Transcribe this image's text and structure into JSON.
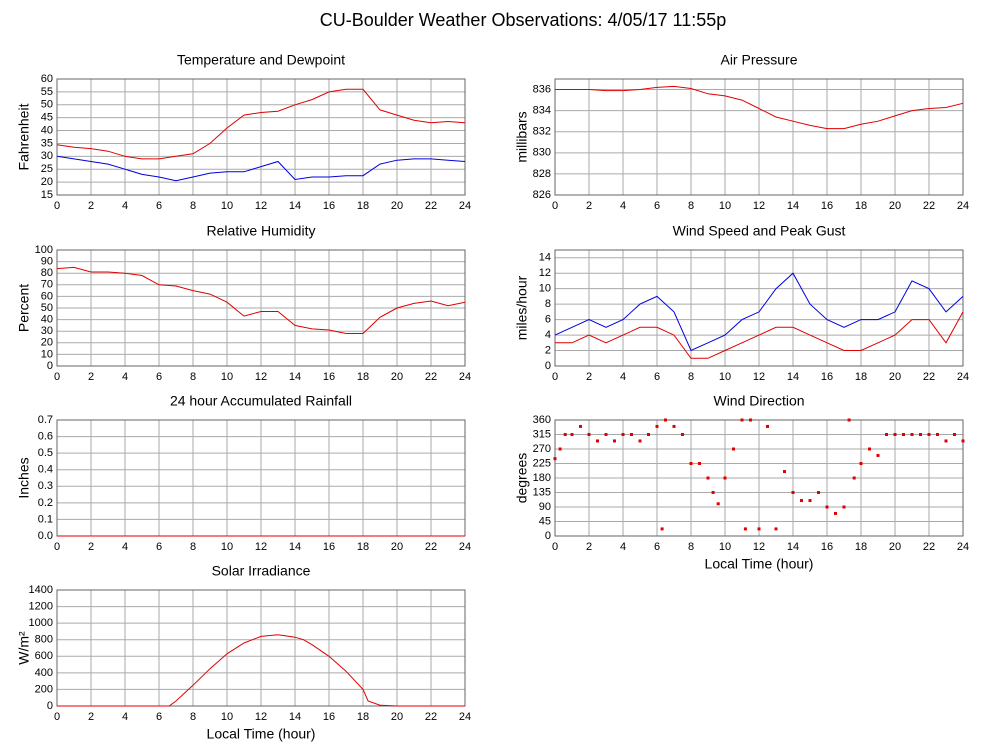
{
  "title": "CU-Boulder Weather Observations: 4/05/17 11:55p",
  "chart_data": [
    {
      "type": "line",
      "title": "Temperature and Dewpoint",
      "ylabel": "Fahrenheit",
      "x": [
        0,
        1,
        2,
        3,
        4,
        5,
        6,
        7,
        8,
        9,
        10,
        11,
        12,
        13,
        14,
        15,
        16,
        17,
        18,
        19,
        20,
        21,
        22,
        23,
        24
      ],
      "series": [
        {
          "color": "#e00000",
          "values": [
            34.5,
            33.5,
            33,
            32,
            30,
            29,
            29,
            30,
            31,
            35,
            41,
            46,
            47,
            47.5,
            50,
            52,
            55,
            56,
            56,
            48,
            46,
            44,
            43,
            43.5,
            43
          ]
        },
        {
          "color": "#0000e0",
          "values": [
            30,
            29,
            28,
            27,
            25,
            23,
            22,
            20.5,
            22,
            23.5,
            24,
            24,
            26,
            28,
            21,
            22,
            22,
            22.5,
            22.5,
            27,
            28.5,
            29,
            29,
            28.5,
            28
          ]
        }
      ],
      "xlim": [
        0,
        24
      ],
      "xticks": [
        0,
        2,
        4,
        6,
        8,
        10,
        12,
        14,
        16,
        18,
        20,
        22,
        24
      ],
      "ylim": [
        15,
        60
      ],
      "yticks": [
        15,
        20,
        25,
        30,
        35,
        40,
        45,
        50,
        55,
        60
      ],
      "grid": true
    },
    {
      "type": "line",
      "title": "Air Pressure",
      "ylabel": "millibars",
      "x": [
        0,
        1,
        2,
        3,
        4,
        5,
        6,
        7,
        8,
        9,
        10,
        11,
        12,
        13,
        14,
        15,
        16,
        17,
        18,
        19,
        20,
        21,
        22,
        23,
        24
      ],
      "series": [
        {
          "color": "#e00000",
          "values": [
            836,
            836,
            836,
            835.9,
            835.9,
            836,
            836.2,
            836.3,
            836.1,
            835.6,
            835.4,
            835,
            834.2,
            833.4,
            833,
            832.6,
            832.3,
            832.3,
            832.7,
            833,
            833.5,
            834,
            834.2,
            834.3,
            834.7
          ]
        }
      ],
      "xlim": [
        0,
        24
      ],
      "xticks": [
        0,
        2,
        4,
        6,
        8,
        10,
        12,
        14,
        16,
        18,
        20,
        22,
        24
      ],
      "ylim": [
        826,
        837
      ],
      "yticks": [
        826,
        828,
        830,
        832,
        834,
        836
      ],
      "grid": true
    },
    {
      "type": "line",
      "title": "Relative Humidity",
      "ylabel": "Percent",
      "x": [
        0,
        1,
        2,
        3,
        4,
        5,
        6,
        7,
        8,
        9,
        10,
        11,
        12,
        13,
        14,
        15,
        16,
        17,
        18,
        19,
        20,
        21,
        22,
        23,
        24
      ],
      "series": [
        {
          "color": "#e00000",
          "values": [
            84,
            85,
            81,
            81,
            80,
            78,
            70,
            69,
            65,
            62,
            55,
            43,
            47,
            47,
            35,
            32,
            31,
            28,
            28,
            42,
            50,
            54,
            56,
            52,
            55
          ]
        }
      ],
      "xlim": [
        0,
        24
      ],
      "xticks": [
        0,
        2,
        4,
        6,
        8,
        10,
        12,
        14,
        16,
        18,
        20,
        22,
        24
      ],
      "ylim": [
        0,
        100
      ],
      "yticks": [
        0,
        10,
        20,
        30,
        40,
        50,
        60,
        70,
        80,
        90,
        100
      ],
      "grid": true
    },
    {
      "type": "line",
      "title": "Wind Speed and Peak Gust",
      "ylabel": "miles/hour",
      "x": [
        0,
        1,
        2,
        3,
        4,
        5,
        6,
        7,
        8,
        9,
        10,
        11,
        12,
        13,
        14,
        15,
        16,
        17,
        18,
        19,
        20,
        21,
        22,
        23,
        24
      ],
      "series": [
        {
          "color": "#0000e0",
          "values": [
            4,
            5,
            6,
            5,
            6,
            8,
            9,
            7,
            2,
            3,
            4,
            6,
            7,
            10,
            12,
            8,
            6,
            5,
            6,
            6,
            7,
            11,
            10,
            7,
            9
          ]
        },
        {
          "color": "#e00000",
          "values": [
            3,
            3,
            4,
            3,
            4,
            5,
            5,
            4,
            1,
            1,
            2,
            3,
            4,
            5,
            5,
            4,
            3,
            2,
            2,
            3,
            4,
            6,
            6,
            3,
            7
          ]
        }
      ],
      "xlim": [
        0,
        24
      ],
      "xticks": [
        0,
        2,
        4,
        6,
        8,
        10,
        12,
        14,
        16,
        18,
        20,
        22,
        24
      ],
      "ylim": [
        0,
        15
      ],
      "yticks": [
        0,
        2,
        4,
        6,
        8,
        10,
        12,
        14
      ],
      "grid": true
    },
    {
      "type": "line",
      "title": "24 hour Accumulated Rainfall",
      "ylabel": "Inches",
      "x": [
        0,
        24
      ],
      "series": [
        {
          "color": "#e00000",
          "values": [
            0,
            0
          ]
        }
      ],
      "xlim": [
        0,
        24
      ],
      "xticks": [
        0,
        2,
        4,
        6,
        8,
        10,
        12,
        14,
        16,
        18,
        20,
        22,
        24
      ],
      "ylim": [
        0,
        0.7
      ],
      "yticks": [
        {
          "value": 0,
          "label": "0.0"
        },
        0.1,
        0.2,
        0.3,
        0.4,
        0.5,
        0.6,
        0.7
      ],
      "grid": true
    },
    {
      "type": "scatter",
      "title": "Wind Direction",
      "ylabel": "degrees",
      "xlabel": "Local Time (hour)",
      "x": [
        0,
        0.3,
        0.6,
        1,
        1.5,
        2,
        2.5,
        3,
        3.5,
        4,
        4.5,
        5,
        5.5,
        6,
        6.3,
        6.5,
        7,
        7.5,
        8,
        8.5,
        9,
        9.3,
        9.6,
        10,
        10.5,
        11,
        11.2,
        11.5,
        12,
        12.5,
        13,
        13.5,
        14,
        14.5,
        15,
        15.5,
        16,
        16.5,
        17,
        17.3,
        17.6,
        18,
        18.5,
        19,
        19.5,
        20,
        20.5,
        21,
        21.5,
        22,
        22.5,
        23,
        23.5,
        24
      ],
      "values": [
        240,
        270,
        315,
        315,
        340,
        315,
        295,
        315,
        295,
        315,
        315,
        295,
        315,
        340,
        22,
        360,
        340,
        315,
        225,
        225,
        180,
        135,
        100,
        180,
        270,
        360,
        22,
        360,
        22,
        340,
        22,
        200,
        135,
        110,
        110,
        135,
        90,
        70,
        90,
        360,
        180,
        225,
        270,
        250,
        315,
        315,
        315,
        315,
        315,
        315,
        315,
        295,
        315,
        295
      ],
      "color": "#e00000",
      "xlim": [
        0,
        24
      ],
      "xticks": [
        0,
        2,
        4,
        6,
        8,
        10,
        12,
        14,
        16,
        18,
        20,
        22,
        24
      ],
      "ylim": [
        0,
        360
      ],
      "yticks": [
        0,
        45,
        90,
        135,
        180,
        225,
        270,
        315,
        360
      ],
      "grid": true
    },
    {
      "type": "line",
      "title": "Solar Irradiance",
      "ylabel": "W/m²",
      "xlabel": "Local Time (hour)",
      "x": [
        0,
        1,
        2,
        3,
        4,
        5,
        6,
        6.6,
        7,
        8,
        9,
        10,
        11,
        12,
        13,
        14,
        14.5,
        15,
        16,
        17,
        18,
        18.3,
        19,
        20,
        21,
        22,
        23,
        24
      ],
      "series": [
        {
          "color": "#e00000",
          "values": [
            0,
            0,
            0,
            0,
            0,
            0,
            0,
            0,
            60,
            250,
            450,
            630,
            760,
            840,
            860,
            830,
            800,
            740,
            600,
            420,
            200,
            60,
            10,
            0,
            0,
            0,
            0,
            0
          ]
        }
      ],
      "xlim": [
        0,
        24
      ],
      "xticks": [
        0,
        2,
        4,
        6,
        8,
        10,
        12,
        14,
        16,
        18,
        20,
        22,
        24
      ],
      "ylim": [
        0,
        1400
      ],
      "yticks": [
        0,
        200,
        400,
        600,
        800,
        1000,
        1200,
        1400
      ],
      "grid": true
    }
  ]
}
